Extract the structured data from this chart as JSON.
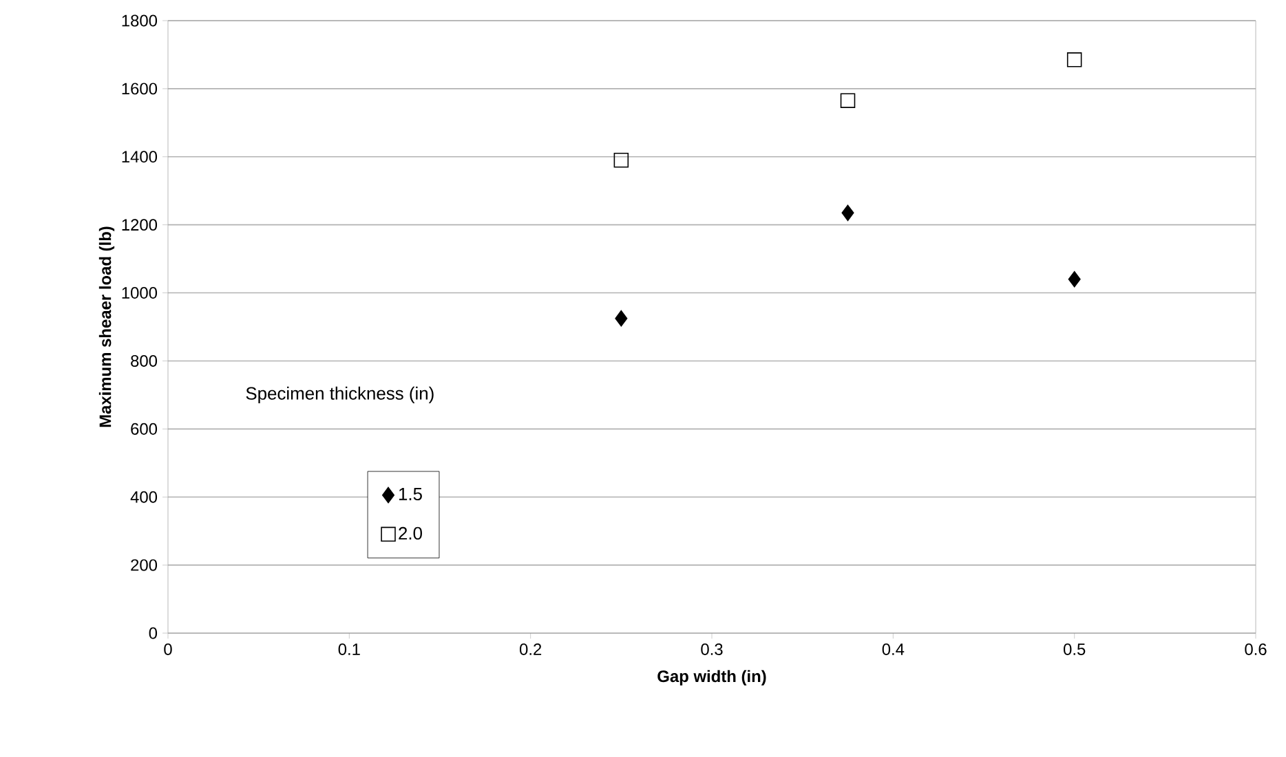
{
  "chart_data": {
    "type": "scatter",
    "xlabel": "Gap width (in)",
    "ylabel": "Maximum sheaer load (lb)",
    "legend_title": "Specimen thickness (in)",
    "x": [
      0.25,
      0.375,
      0.5
    ],
    "series": [
      {
        "name": "1.5",
        "color": "#000000",
        "marker": "diamond",
        "values": [
          925,
          1235,
          1040
        ]
      },
      {
        "name": "2.0",
        "color": "#000000",
        "marker": "square",
        "values": [
          1390,
          1565,
          1685
        ]
      }
    ],
    "xlim": [
      0,
      0.6
    ],
    "ylim": [
      0,
      1800
    ],
    "xticks": [
      0,
      0.1,
      0.2,
      0.3,
      0.4,
      0.5,
      0.6
    ],
    "yticks": [
      0,
      200,
      400,
      600,
      800,
      1000,
      1200,
      1400,
      1600,
      1800
    ],
    "grid": "y",
    "legend": "bottom left"
  }
}
